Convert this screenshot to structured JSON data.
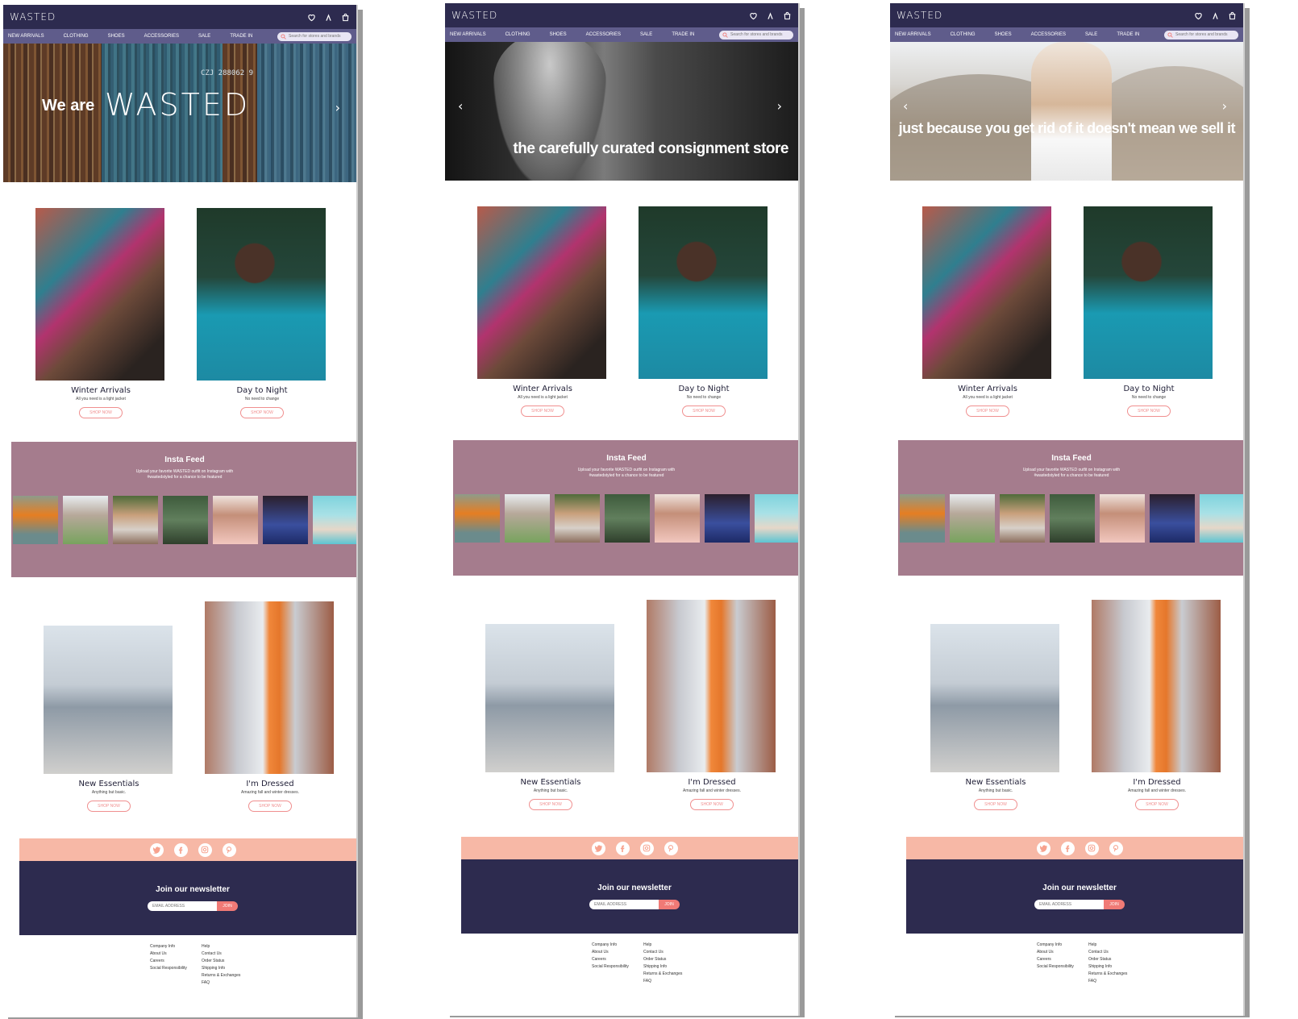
{
  "site": {
    "logo": "WASTED",
    "nav": [
      "NEW ARRIVALS",
      "CLOTHING",
      "SHOES",
      "ACCESSORIES",
      "SALE",
      "TRADE IN"
    ],
    "search_placeholder": "Search for stores and brands"
  },
  "heroes": [
    {
      "line1": "We are",
      "wordmark": "WASTED",
      "container_code": "CZJ 288062 9"
    },
    {
      "caption": "the carefully curated consignment store"
    },
    {
      "caption": "just because you get rid of it doesn't mean we sell it"
    }
  ],
  "tiles_top": [
    {
      "title": "Winter Arrivals",
      "subtitle": "All you need is a light jacket",
      "button": "SHOP NOW"
    },
    {
      "title": "Day to Night",
      "subtitle": "No need to change",
      "button": "SHOP NOW"
    }
  ],
  "insta": {
    "title": "Insta Feed",
    "text": "Upload your favorite WASTED outfit on Instagram with #wastedstyled for a chance to be featured"
  },
  "tiles_bottom": [
    {
      "title": "New Essentials",
      "subtitle": "Anything but basic.",
      "button": "SHOP NOW"
    },
    {
      "title": "I'm Dressed",
      "subtitle": "Amazing fall and winter dresses.",
      "button": "SHOP NOW"
    }
  ],
  "social_icons": [
    "twitter-icon",
    "facebook-icon",
    "instagram-icon",
    "pinterest-icon"
  ],
  "newsletter": {
    "title": "Join our newsletter",
    "placeholder": "EMAIL ADDRESS",
    "button": "JOIN"
  },
  "footer": {
    "col1": [
      "Company Info",
      "About Us",
      "Careers",
      "Social Responsibility"
    ],
    "col2": [
      "Help",
      "Contact Us",
      "Order Status",
      "Shipping Info",
      "Returns & Exchanges",
      "FAQ"
    ]
  },
  "colors": {
    "header": "#2d2b4f",
    "nav": "#5f5c8b",
    "insta_bg": "#a57c8d",
    "social_bg": "#f7b8a6",
    "accent": "#f07a76"
  }
}
